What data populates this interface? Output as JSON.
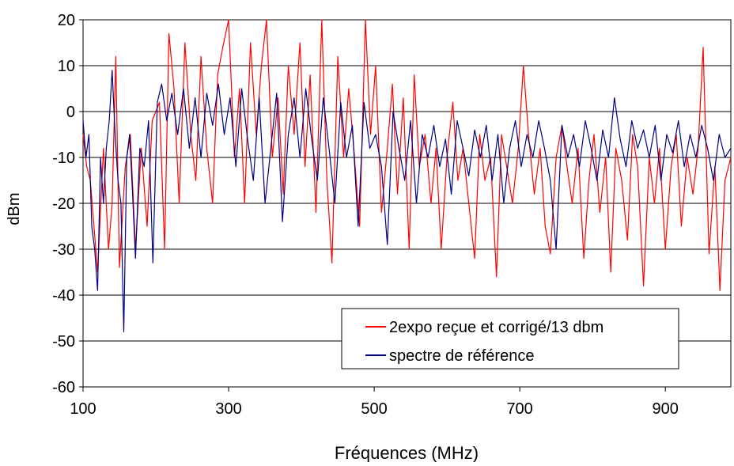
{
  "chart_data": {
    "type": "line",
    "title": "",
    "xlabel": "Fréquences (MHz)",
    "ylabel": "dBm",
    "xlim": [
      100,
      990
    ],
    "ylim": [
      -60,
      20
    ],
    "xticks": [
      100,
      300,
      500,
      700,
      900
    ],
    "yticks": [
      20,
      10,
      0,
      -10,
      -20,
      -30,
      -40,
      -50,
      -60
    ],
    "grid": "horizontal",
    "legend_position": "bottom-right",
    "series": [
      {
        "name": "2expo reçue et corrigé/13 dbm",
        "color": "#ff0000",
        "points": [
          [
            100,
            -5
          ],
          [
            105,
            -12
          ],
          [
            110,
            -15
          ],
          [
            115,
            -25
          ],
          [
            120,
            -35
          ],
          [
            128,
            -8
          ],
          [
            135,
            -30
          ],
          [
            140,
            -20
          ],
          [
            145,
            12
          ],
          [
            150,
            -34
          ],
          [
            158,
            -12
          ],
          [
            165,
            -5
          ],
          [
            172,
            -30
          ],
          [
            180,
            -8
          ],
          [
            188,
            -25
          ],
          [
            195,
            -2
          ],
          [
            205,
            2
          ],
          [
            212,
            -30
          ],
          [
            218,
            17
          ],
          [
            225,
            5
          ],
          [
            232,
            -20
          ],
          [
            240,
            15
          ],
          [
            248,
            -5
          ],
          [
            255,
            -15
          ],
          [
            262,
            12
          ],
          [
            270,
            -8
          ],
          [
            278,
            -20
          ],
          [
            285,
            8
          ],
          [
            292,
            14
          ],
          [
            300,
            20
          ],
          [
            308,
            -10
          ],
          [
            315,
            5
          ],
          [
            322,
            -20
          ],
          [
            330,
            15
          ],
          [
            338,
            -5
          ],
          [
            345,
            10
          ],
          [
            352,
            20
          ],
          [
            360,
            -10
          ],
          [
            368,
            3
          ],
          [
            375,
            -18
          ],
          [
            382,
            10
          ],
          [
            390,
            -5
          ],
          [
            398,
            15
          ],
          [
            405,
            -12
          ],
          [
            412,
            8
          ],
          [
            420,
            -22
          ],
          [
            428,
            20
          ],
          [
            435,
            -15
          ],
          [
            442,
            -33
          ],
          [
            450,
            12
          ],
          [
            458,
            -10
          ],
          [
            465,
            5
          ],
          [
            472,
            -8
          ],
          [
            480,
            -25
          ],
          [
            488,
            20
          ],
          [
            495,
            -5
          ],
          [
            502,
            10
          ],
          [
            510,
            -22
          ],
          [
            518,
            -8
          ],
          [
            525,
            6
          ],
          [
            532,
            -18
          ],
          [
            540,
            3
          ],
          [
            548,
            -30
          ],
          [
            555,
            8
          ],
          [
            562,
            -12
          ],
          [
            570,
            -5
          ],
          [
            578,
            -20
          ],
          [
            585,
            -8
          ],
          [
            592,
            -30
          ],
          [
            600,
            -10
          ],
          [
            608,
            2
          ],
          [
            615,
            -15
          ],
          [
            622,
            -8
          ],
          [
            630,
            -20
          ],
          [
            638,
            -32
          ],
          [
            645,
            -5
          ],
          [
            652,
            -15
          ],
          [
            660,
            -10
          ],
          [
            668,
            -36
          ],
          [
            675,
            -5
          ],
          [
            682,
            -12
          ],
          [
            690,
            -20
          ],
          [
            698,
            -8
          ],
          [
            705,
            10
          ],
          [
            712,
            -5
          ],
          [
            720,
            -18
          ],
          [
            728,
            -8
          ],
          [
            735,
            -25
          ],
          [
            742,
            -31
          ],
          [
            750,
            -10
          ],
          [
            758,
            -3
          ],
          [
            765,
            -12
          ],
          [
            772,
            -20
          ],
          [
            780,
            -8
          ],
          [
            788,
            -32
          ],
          [
            795,
            -15
          ],
          [
            802,
            -5
          ],
          [
            810,
            -22
          ],
          [
            818,
            -10
          ],
          [
            825,
            -35
          ],
          [
            832,
            -8
          ],
          [
            840,
            -15
          ],
          [
            848,
            -28
          ],
          [
            855,
            -5
          ],
          [
            862,
            -12
          ],
          [
            870,
            -38
          ],
          [
            878,
            -10
          ],
          [
            885,
            -20
          ],
          [
            892,
            -8
          ],
          [
            900,
            -30
          ],
          [
            908,
            -12
          ],
          [
            915,
            -5
          ],
          [
            922,
            -25
          ],
          [
            930,
            -10
          ],
          [
            938,
            -18
          ],
          [
            945,
            -8
          ],
          [
            952,
            14
          ],
          [
            960,
            -31
          ],
          [
            968,
            -12
          ],
          [
            975,
            -39
          ],
          [
            982,
            -15
          ],
          [
            990,
            -10
          ]
        ]
      },
      {
        "name": "spectre de référence",
        "color": "#000080",
        "points": [
          [
            100,
            -2
          ],
          [
            104,
            -10
          ],
          [
            108,
            -5
          ],
          [
            112,
            -25
          ],
          [
            116,
            -30
          ],
          [
            120,
            -39
          ],
          [
            124,
            -10
          ],
          [
            128,
            -20
          ],
          [
            132,
            -8
          ],
          [
            136,
            -2
          ],
          [
            140,
            9
          ],
          [
            144,
            -5
          ],
          [
            148,
            -15
          ],
          [
            152,
            -20
          ],
          [
            156,
            -48
          ],
          [
            160,
            -10
          ],
          [
            164,
            -5
          ],
          [
            168,
            -18
          ],
          [
            172,
            -32
          ],
          [
            178,
            -8
          ],
          [
            184,
            -12
          ],
          [
            190,
            -2
          ],
          [
            196,
            -33
          ],
          [
            202,
            2
          ],
          [
            208,
            6
          ],
          [
            215,
            -2
          ],
          [
            222,
            4
          ],
          [
            230,
            -5
          ],
          [
            238,
            5
          ],
          [
            246,
            -8
          ],
          [
            254,
            3
          ],
          [
            262,
            -10
          ],
          [
            270,
            4
          ],
          [
            278,
            -3
          ],
          [
            286,
            6
          ],
          [
            294,
            -5
          ],
          [
            302,
            3
          ],
          [
            310,
            -12
          ],
          [
            318,
            5
          ],
          [
            326,
            -6
          ],
          [
            334,
            -15
          ],
          [
            342,
            3
          ],
          [
            350,
            -20
          ],
          [
            358,
            -8
          ],
          [
            366,
            4
          ],
          [
            374,
            -24
          ],
          [
            382,
            -5
          ],
          [
            390,
            3
          ],
          [
            398,
            -10
          ],
          [
            406,
            5
          ],
          [
            414,
            -6
          ],
          [
            422,
            -15
          ],
          [
            430,
            3
          ],
          [
            438,
            -8
          ],
          [
            446,
            -20
          ],
          [
            454,
            2
          ],
          [
            462,
            -10
          ],
          [
            470,
            -3
          ],
          [
            478,
            -25
          ],
          [
            486,
            2
          ],
          [
            494,
            -8
          ],
          [
            502,
            -5
          ],
          [
            510,
            -12
          ],
          [
            518,
            -29
          ],
          [
            526,
            0
          ],
          [
            534,
            -8
          ],
          [
            542,
            -15
          ],
          [
            550,
            -2
          ],
          [
            558,
            -20
          ],
          [
            566,
            -5
          ],
          [
            574,
            -10
          ],
          [
            582,
            -3
          ],
          [
            590,
            -12
          ],
          [
            598,
            -6
          ],
          [
            606,
            -18
          ],
          [
            614,
            -2
          ],
          [
            622,
            -8
          ],
          [
            630,
            -14
          ],
          [
            638,
            -4
          ],
          [
            646,
            -10
          ],
          [
            654,
            -3
          ],
          [
            662,
            -15
          ],
          [
            670,
            -5
          ],
          [
            678,
            -20
          ],
          [
            686,
            -8
          ],
          [
            694,
            -2
          ],
          [
            702,
            -12
          ],
          [
            710,
            -5
          ],
          [
            718,
            -10
          ],
          [
            726,
            -2
          ],
          [
            734,
            -8
          ],
          [
            742,
            -15
          ],
          [
            750,
            -30
          ],
          [
            758,
            -3
          ],
          [
            766,
            -10
          ],
          [
            774,
            -5
          ],
          [
            782,
            -12
          ],
          [
            790,
            -2
          ],
          [
            798,
            -8
          ],
          [
            806,
            -15
          ],
          [
            814,
            -4
          ],
          [
            822,
            -10
          ],
          [
            830,
            3
          ],
          [
            838,
            -6
          ],
          [
            846,
            -12
          ],
          [
            854,
            -2
          ],
          [
            862,
            -8
          ],
          [
            870,
            -4
          ],
          [
            878,
            -10
          ],
          [
            886,
            -3
          ],
          [
            894,
            -15
          ],
          [
            902,
            -5
          ],
          [
            910,
            -9
          ],
          [
            918,
            -2
          ],
          [
            926,
            -12
          ],
          [
            934,
            -5
          ],
          [
            942,
            -10
          ],
          [
            950,
            -3
          ],
          [
            958,
            -8
          ],
          [
            966,
            -15
          ],
          [
            974,
            -5
          ],
          [
            982,
            -10
          ],
          [
            990,
            -8
          ]
        ]
      }
    ]
  }
}
